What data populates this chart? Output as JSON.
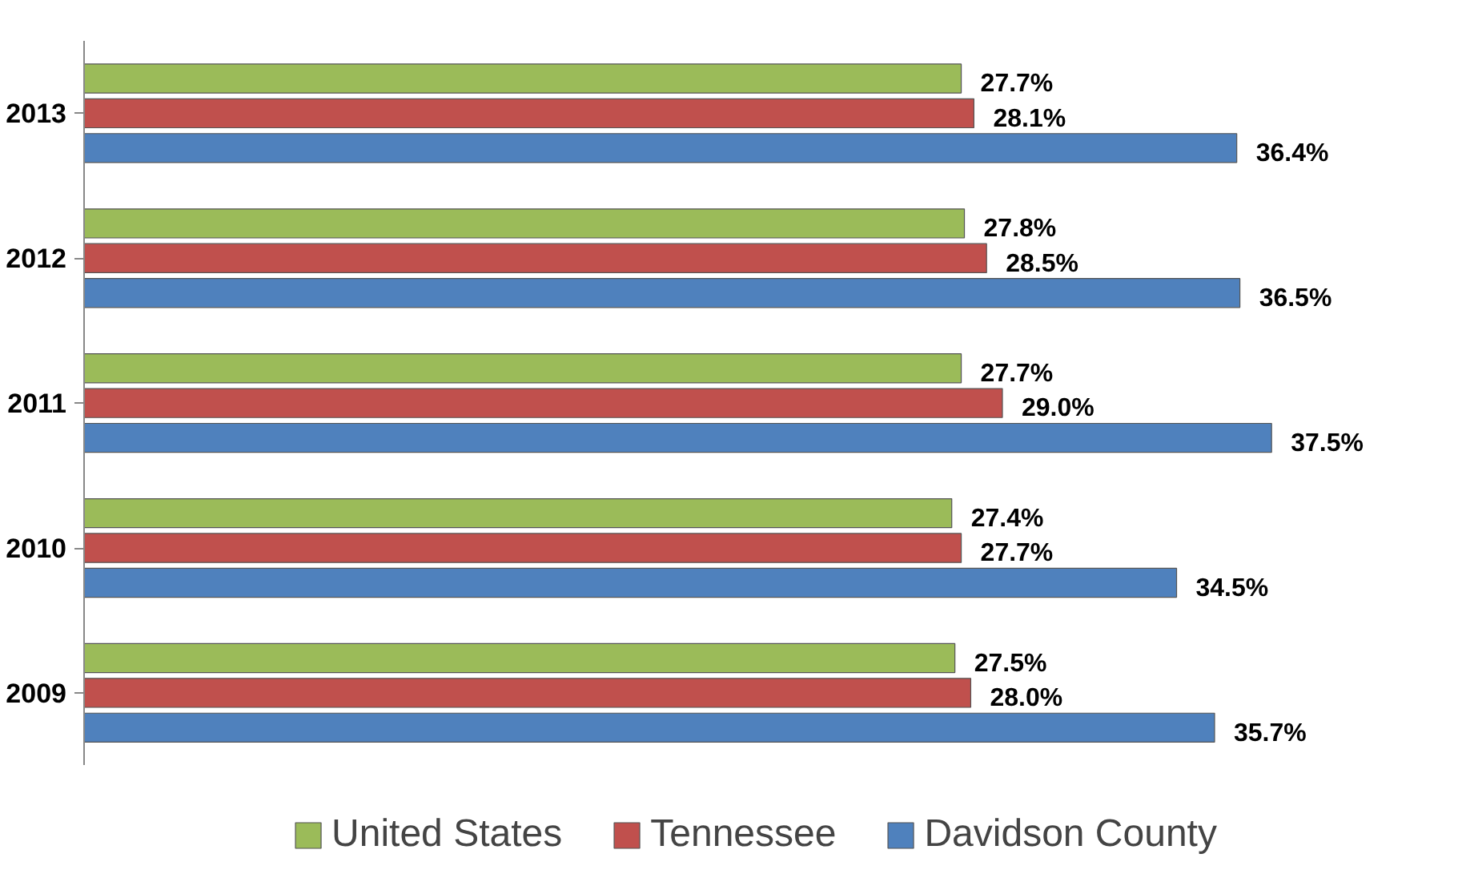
{
  "chart_data": {
    "type": "bar",
    "orientation": "horizontal",
    "categories": [
      "2013",
      "2012",
      "2011",
      "2010",
      "2009"
    ],
    "series": [
      {
        "name": "United States",
        "color": "#9bbb59",
        "values": [
          27.7,
          27.8,
          27.7,
          27.4,
          27.5
        ],
        "value_labels": [
          "27.7%",
          "27.8%",
          "27.7%",
          "27.4%",
          "27.5%"
        ]
      },
      {
        "name": "Tennessee",
        "color": "#c0504d",
        "values": [
          28.1,
          28.5,
          29.0,
          27.7,
          28.0
        ],
        "value_labels": [
          "28.1%",
          "28.5%",
          "29.0%",
          "27.7%",
          "28.0%"
        ]
      },
      {
        "name": "Davidson County",
        "color": "#4f81bd",
        "values": [
          36.4,
          36.5,
          37.5,
          34.5,
          35.7
        ],
        "value_labels": [
          "36.4%",
          "36.5%",
          "37.5%",
          "34.5%",
          "35.7%"
        ]
      }
    ],
    "legend": "bottom",
    "grid": false,
    "tick_labels": "y"
  }
}
